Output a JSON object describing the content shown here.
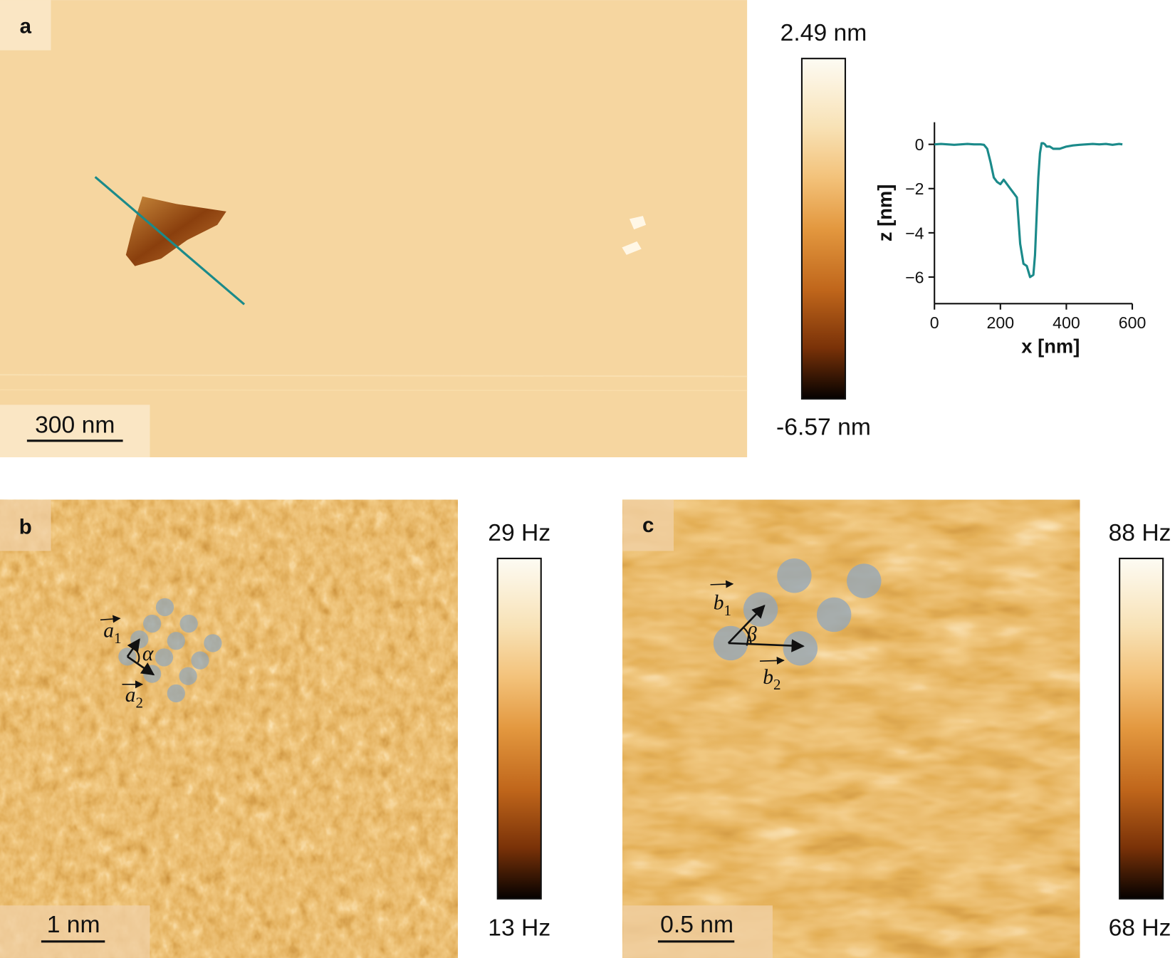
{
  "panels": [
    {
      "label": "a",
      "scale_bar": "300 nm",
      "colorbar": {
        "max": "2.49 nm",
        "min": "-6.57 nm"
      }
    },
    {
      "label": "b",
      "scale_bar": "1 nm",
      "colorbar": {
        "max": "29 Hz",
        "min": "13 Hz"
      },
      "vectors": [
        {
          "base": "a",
          "sub": "1"
        },
        {
          "base": "a",
          "sub": "2"
        }
      ],
      "angle": "α"
    },
    {
      "label": "c",
      "scale_bar": "0.5 nm",
      "colorbar": {
        "max": "88 Hz",
        "min": "68 Hz"
      },
      "vectors": [
        {
          "base": "b",
          "sub": "1"
        },
        {
          "base": "b",
          "sub": "2"
        }
      ],
      "angle": "β"
    }
  ],
  "chart_data": {
    "type": "line",
    "xlabel": "x [nm]",
    "ylabel": "z [nm]",
    "x": [
      0,
      20,
      40,
      60,
      80,
      100,
      120,
      140,
      150,
      160,
      170,
      180,
      190,
      200,
      210,
      220,
      230,
      240,
      250,
      260,
      270,
      280,
      290,
      300,
      305,
      310,
      315,
      320,
      325,
      330,
      335,
      340,
      350,
      360,
      380,
      400,
      420,
      440,
      460,
      480,
      500,
      520,
      540,
      560,
      570
    ],
    "values": [
      0,
      0.02,
      0,
      -0.02,
      0,
      0.02,
      0,
      0,
      -0.02,
      -0.2,
      -0.8,
      -1.5,
      -1.7,
      -1.8,
      -1.6,
      -1.8,
      -2.0,
      -2.2,
      -2.4,
      -4.5,
      -5.4,
      -5.5,
      -6.0,
      -5.9,
      -5.0,
      -3.2,
      -1.5,
      -0.4,
      0.05,
      0.05,
      0,
      -0.1,
      -0.1,
      -0.2,
      -0.2,
      -0.1,
      -0.05,
      -0.02,
      0,
      0.02,
      0,
      0.02,
      -0.02,
      0.02,
      0
    ],
    "color": "#1b8a8a",
    "xlim": [
      0,
      600
    ],
    "ylim": [
      -7.2,
      1
    ],
    "xticks": [
      0,
      200,
      400,
      600
    ],
    "yticks": [
      0,
      {
        "value": -2,
        "label": "−2"
      },
      {
        "value": -4,
        "label": "−4"
      },
      {
        "value": -6,
        "label": "−6"
      }
    ]
  }
}
